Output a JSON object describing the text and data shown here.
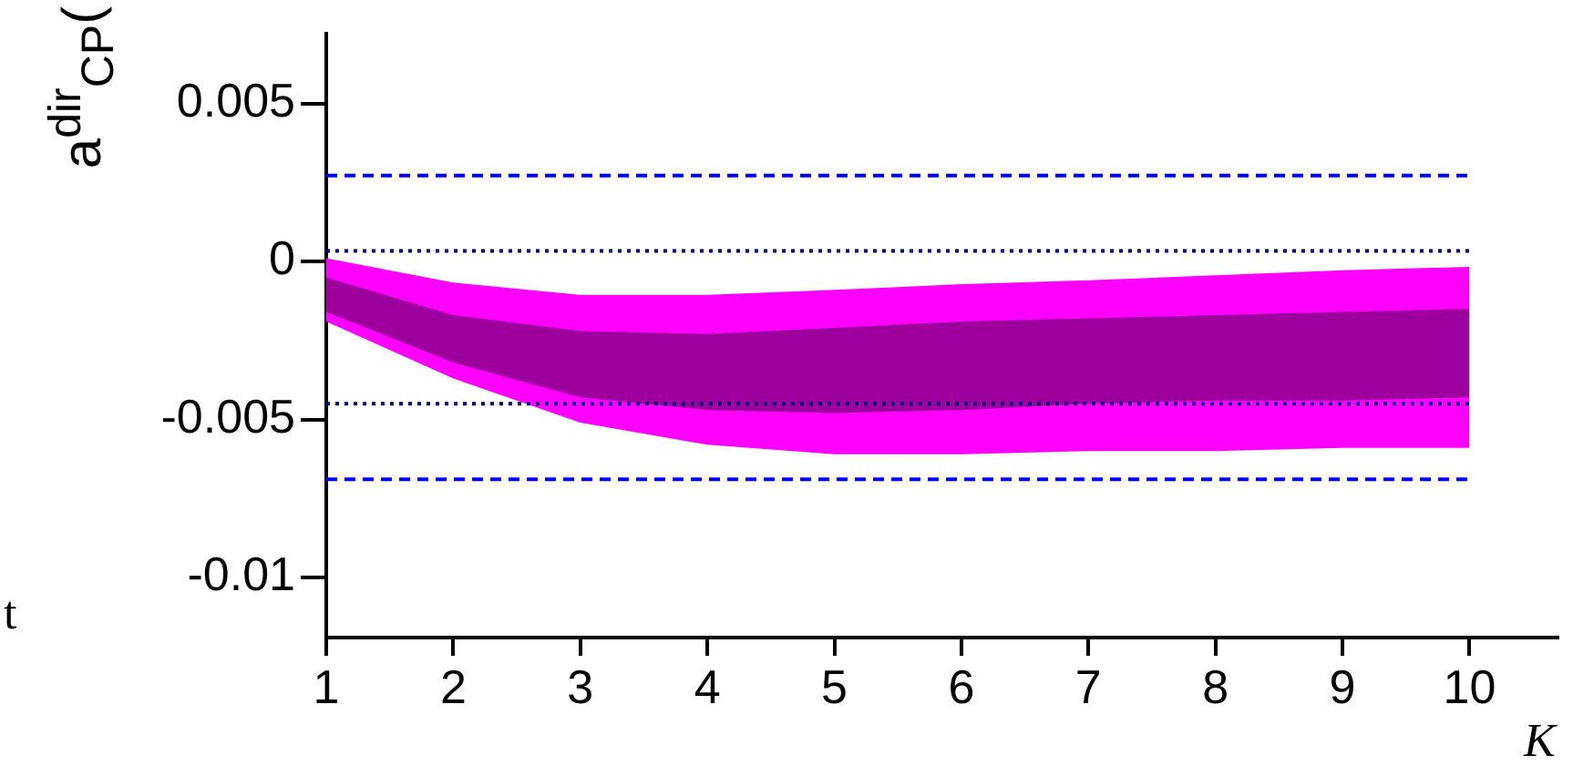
{
  "chart_data": {
    "type": "area",
    "ylabel": "a$^{dir}$$_{CP}$(",
    "xlabel": "K",
    "annotations": [
      "t"
    ],
    "x": [
      1,
      2,
      3,
      4,
      5,
      6,
      7,
      8,
      9,
      10
    ],
    "series": [
      {
        "color": "#ff00ff",
        "values": [
          null,
          null,
          null,
          null,
          null,
          null,
          null,
          null,
          null,
          null
        ],
        "lower": [
          -0.0019,
          -0.0037,
          -0.0051,
          -0.0058,
          -0.0061,
          -0.0061,
          -0.006,
          -0.006,
          -0.0059,
          -0.0059
        ],
        "upper": [
          0.0001,
          -0.00067,
          -0.00106,
          -0.00106,
          -0.0009,
          -0.00072,
          -0.0006,
          -0.00044,
          -0.00028,
          -0.00017
        ]
      },
      {
        "color": "#9e009e",
        "values": [
          null,
          null,
          null,
          null,
          null,
          null,
          null,
          null,
          null,
          null
        ],
        "lower": [
          -0.0016,
          -0.0032,
          -0.0043,
          -0.0047,
          -0.0048,
          -0.0047,
          -0.0045,
          -0.0044,
          -0.0044,
          -0.0043
        ],
        "upper": [
          -0.0005,
          -0.0017,
          -0.0022,
          -0.0023,
          -0.0021,
          -0.0019,
          -0.0018,
          -0.0017,
          -0.0016,
          -0.0015
        ]
      }
    ],
    "ref_lines": [
      {
        "axis": "y",
        "value": 0.00272,
        "color": "#0000ff",
        "line_style": "dashed"
      },
      {
        "axis": "y",
        "value": -0.00689,
        "color": "#0000ff",
        "line_style": "dashed"
      },
      {
        "axis": "y",
        "value": 0.00033,
        "color": "#000080",
        "line_style": "dotted"
      },
      {
        "axis": "y",
        "value": -0.0045,
        "color": "#000080",
        "line_style": "dotted"
      }
    ],
    "xlim": [
      1,
      10.7
    ],
    "ylim": [
      -0.0119,
      0.0072
    ],
    "xticks": [
      1,
      2,
      3,
      4,
      5,
      6,
      7,
      8,
      9,
      10
    ],
    "yticks": [
      -0.01,
      -0.005,
      0,
      0.005
    ],
    "grid": false,
    "legend": false
  }
}
